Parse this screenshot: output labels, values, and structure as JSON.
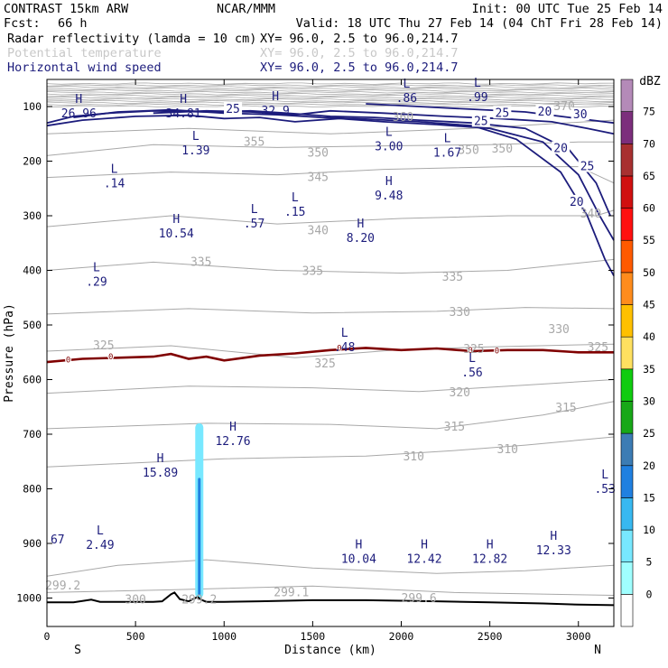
{
  "header": {
    "model": "CONTRAST 15km ARW",
    "center": "NCAR/MMM",
    "init": "Init: 00 UTC Tue 25 Feb 14",
    "fcst_label": "Fcst:",
    "fcst_value": "66 h",
    "valid": "Valid: 18 UTC Thu 27 Feb 14 (04 ChT Fri 28 Feb 14)",
    "fields": [
      {
        "name": "Radar reflectivity (lamda = 10 cm)",
        "xy": "XY=  96.0,  2.5 to  96.0,214.7",
        "color": "#000000"
      },
      {
        "name": "Potential temperature",
        "xy": "XY=  96.0,  2.5 to  96.0,214.7",
        "color": "#c8c8c8"
      },
      {
        "name": "Horizontal wind speed",
        "xy": "XY=  96.0,  2.5 to  96.0,214.7",
        "color": "#1c1c7c"
      }
    ]
  },
  "chart_data": {
    "type": "contour_cross_section",
    "xlabel": "Distance (km)",
    "ylabel": "Pressure (hPa)",
    "xlim": [
      0,
      3200
    ],
    "ylim": [
      1050,
      50
    ],
    "x_ticks": [
      0,
      500,
      1000,
      1500,
      2000,
      2500,
      3000
    ],
    "y_ticks": [
      100,
      200,
      300,
      400,
      500,
      600,
      700,
      800,
      900,
      1000
    ],
    "endpoints": {
      "left": "S",
      "right": "N"
    },
    "colorbar": {
      "unit": "dBZ",
      "levels": [
        "0",
        "5",
        "10",
        "15",
        "20",
        "25",
        "30",
        "35",
        "40",
        "45",
        "50",
        "55",
        "60",
        "65",
        "70",
        "75"
      ],
      "colors": [
        "#ffffff",
        "#a0ffff",
        "#78e8ff",
        "#38b8f0",
        "#2080e0",
        "#3c7cb4",
        "#18a818",
        "#10cc10",
        "#ffe060",
        "#ffc000",
        "#ff8c1c",
        "#ff5a00",
        "#ff1010",
        "#d01010",
        "#a83030",
        "#7c2e7c",
        "#b48ab8"
      ]
    },
    "theta_labels": [
      {
        "text": "370",
        "x": 2920,
        "p": 100
      },
      {
        "text": "360",
        "x": 2010,
        "p": 120
      },
      {
        "text": "355",
        "x": 1170,
        "p": 165
      },
      {
        "text": "350",
        "x": 1530,
        "p": 185
      },
      {
        "text": "350",
        "x": 2380,
        "p": 180
      },
      {
        "text": "350",
        "x": 2570,
        "p": 178
      },
      {
        "text": "345",
        "x": 1530,
        "p": 230
      },
      {
        "text": "340",
        "x": 1530,
        "p": 327
      },
      {
        "text": "340",
        "x": 3070,
        "p": 297
      },
      {
        "text": "335",
        "x": 870,
        "p": 385
      },
      {
        "text": "335",
        "x": 1500,
        "p": 402
      },
      {
        "text": "335",
        "x": 2290,
        "p": 412
      },
      {
        "text": "330",
        "x": 2330,
        "p": 477
      },
      {
        "text": "330",
        "x": 2890,
        "p": 508
      },
      {
        "text": "325",
        "x": 320,
        "p": 538
      },
      {
        "text": "325",
        "x": 1570,
        "p": 571
      },
      {
        "text": "325",
        "x": 2410,
        "p": 545
      },
      {
        "text": "325",
        "x": 3110,
        "p": 541
      },
      {
        "text": "320",
        "x": 2330,
        "p": 624
      },
      {
        "text": "315",
        "x": 2300,
        "p": 687
      },
      {
        "text": "315",
        "x": 2930,
        "p": 652
      },
      {
        "text": "310",
        "x": 2070,
        "p": 741
      },
      {
        "text": "310",
        "x": 2600,
        "p": 728
      },
      {
        "text": "300",
        "x": 500,
        "p": 1003
      },
      {
        "text": "299.2",
        "x": 90,
        "p": 978
      },
      {
        "text": "299.1",
        "x": 1380,
        "p": 990
      },
      {
        "text": "299.6",
        "x": 2100,
        "p": 1001
      },
      {
        "text": "299.2",
        "x": 860,
        "p": 1003
      }
    ],
    "wind_labels": [
      {
        "text": "25",
        "x": 1050,
        "p": 105
      },
      {
        "text": "25",
        "x": 2570,
        "p": 112
      },
      {
        "text": "25",
        "x": 2450,
        "p": 127
      },
      {
        "text": "20",
        "x": 2810,
        "p": 110
      },
      {
        "text": "30",
        "x": 3010,
        "p": 115
      },
      {
        "text": "20",
        "x": 2900,
        "p": 177
      },
      {
        "text": "25",
        "x": 3050,
        "p": 210
      },
      {
        "text": "20",
        "x": 2990,
        "p": 275
      }
    ],
    "hl_markers": [
      {
        "letter": "H",
        "value": "26.96",
        "x": 180,
        "p": 100
      },
      {
        "letter": "H",
        "value": "34.81",
        "x": 770,
        "p": 100
      },
      {
        "letter": "H",
        "value": "32.9",
        "x": 1290,
        "p": 95
      },
      {
        "letter": "L",
        "value": ".86",
        "x": 2030,
        "p": 72
      },
      {
        "letter": "L",
        "value": ".99",
        "x": 2430,
        "p": 70
      },
      {
        "letter": "L",
        "value": "1.39",
        "x": 840,
        "p": 168
      },
      {
        "letter": "L",
        "value": "3.00",
        "x": 1930,
        "p": 160
      },
      {
        "letter": "L",
        "value": "1.67",
        "x": 2260,
        "p": 172
      },
      {
        "letter": "L",
        "value": ".14",
        "x": 380,
        "p": 228
      },
      {
        "letter": "L",
        "value": ".15",
        "x": 1400,
        "p": 280
      },
      {
        "letter": "H",
        "value": "9.48",
        "x": 1930,
        "p": 250
      },
      {
        "letter": "L",
        "value": ".57",
        "x": 1170,
        "p": 302
      },
      {
        "letter": "H",
        "value": "10.54",
        "x": 730,
        "p": 320
      },
      {
        "letter": "H",
        "value": "8.20",
        "x": 1770,
        "p": 328
      },
      {
        "letter": "L",
        "value": ".29",
        "x": 280,
        "p": 408
      },
      {
        "letter": "L",
        "value": ".48",
        "x": 1680,
        "p": 528
      },
      {
        "letter": "L",
        "value": ".56",
        "x": 2400,
        "p": 574
      },
      {
        "letter": "H",
        "value": "12.76",
        "x": 1050,
        "p": 700
      },
      {
        "letter": "H",
        "value": "15.89",
        "x": 640,
        "p": 758
      },
      {
        "letter": "L",
        "value": ".53",
        "x": 3150,
        "p": 788
      },
      {
        "letter": "L",
        "value": "2.49",
        "x": 300,
        "p": 890
      },
      {
        "letter": "H",
        "value": "10.04",
        "x": 1760,
        "p": 916
      },
      {
        "letter": "H",
        "value": "12.42",
        "x": 2130,
        "p": 916
      },
      {
        "letter": "H",
        "value": "12.82",
        "x": 2500,
        "p": 916
      },
      {
        "letter": "H",
        "value": "12.33",
        "x": 2860,
        "p": 900
      },
      {
        "letter": "",
        "value": "67",
        "x": 60,
        "p": 880
      }
    ],
    "zero_c_labels": [
      {
        "text": "0",
        "x": 120,
        "p": 564
      },
      {
        "text": "0",
        "x": 360,
        "p": 558
      },
      {
        "text": "0",
        "x": 1650,
        "p": 542
      },
      {
        "text": "0",
        "x": 2390,
        "p": 546
      },
      {
        "text": "0",
        "x": 2540,
        "p": 547
      }
    ],
    "reflectivity_columns": [
      {
        "x": 860,
        "p_top": 680,
        "p_bottom": 1000,
        "dbz": 10
      },
      {
        "x": 860,
        "p_top": 780,
        "p_bottom": 995,
        "dbz": 20
      }
    ],
    "terrain": {
      "x": [
        0,
        150,
        250,
        300,
        400,
        500,
        600,
        650,
        700,
        720,
        750,
        800,
        850,
        870,
        900,
        1000,
        1200,
        1500,
        1800,
        2000,
        2200,
        2500,
        2800,
        3000,
        3200
      ],
      "p": [
        1008,
        1008,
        1003,
        1007,
        1007,
        1007,
        1007,
        1006,
        993,
        990,
        1002,
        1006,
        998,
        1003,
        1007,
        1007,
        1006,
        1004,
        1004,
        1005,
        1006,
        1008,
        1010,
        1012,
        1013
      ]
    }
  }
}
